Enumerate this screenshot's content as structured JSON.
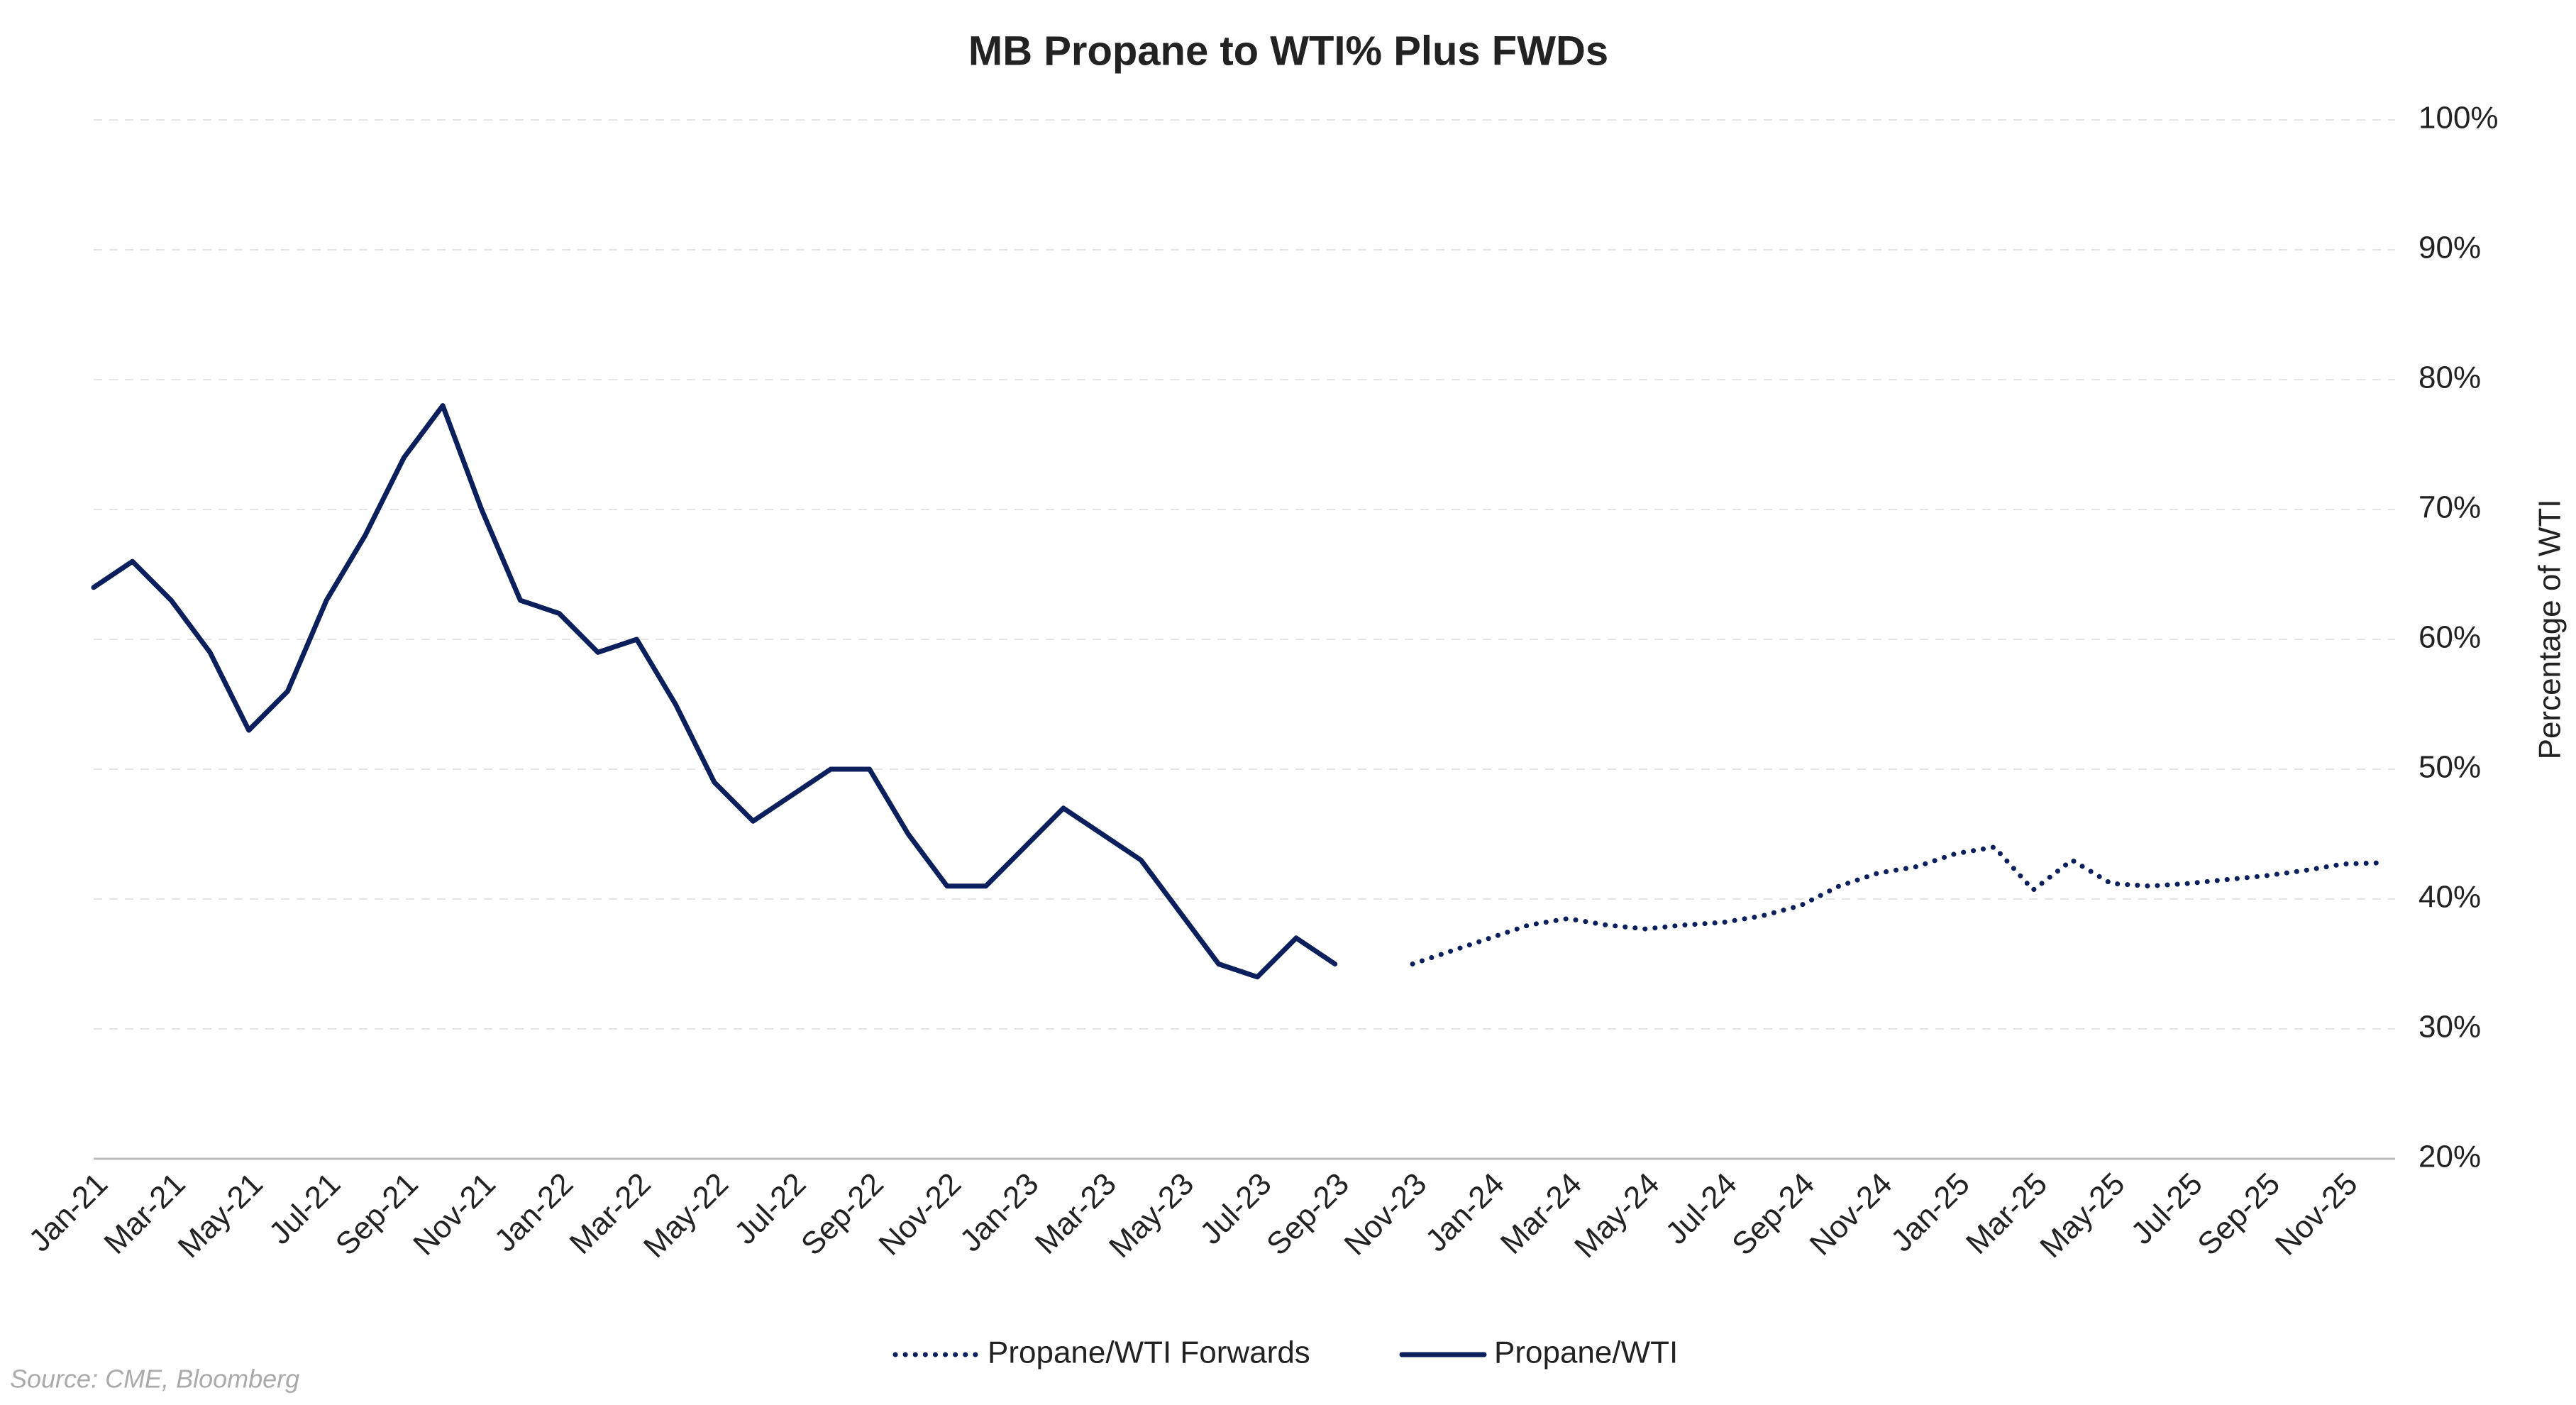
{
  "chart_data": {
    "type": "line",
    "title": "MB Propane to WTI% Plus FWDs",
    "y_axis_label": "Percentage of WTI",
    "source": "Source: CME, Bloomberg",
    "categories": [
      "Jan-21",
      null,
      "Mar-21",
      null,
      "May-21",
      null,
      "Jul-21",
      null,
      "Sep-21",
      null,
      "Nov-21",
      null,
      "Jan-22",
      null,
      "Mar-22",
      null,
      "May-22",
      null,
      "Jul-22",
      null,
      "Sep-22",
      null,
      "Nov-22",
      null,
      "Jan-23",
      null,
      "Mar-23",
      null,
      "May-23",
      null,
      "Jul-23",
      null,
      "Sep-23",
      null,
      "Nov-23",
      null,
      "Jan-24",
      null,
      "Mar-24",
      null,
      "May-24",
      null,
      "Jul-24",
      null,
      "Sep-24",
      null,
      "Nov-24",
      null,
      "Jan-25",
      null,
      "Mar-25",
      null,
      "May-25",
      null,
      "Jul-25",
      null,
      "Sep-25",
      null,
      "Nov-25",
      null
    ],
    "series": [
      {
        "name": "Propane/WTI Forwards",
        "color": "#0b1f5c",
        "style": "dotted",
        "values": [
          null,
          null,
          null,
          null,
          null,
          null,
          null,
          null,
          null,
          null,
          null,
          null,
          null,
          null,
          null,
          null,
          null,
          null,
          null,
          null,
          null,
          null,
          null,
          null,
          null,
          null,
          null,
          null,
          null,
          null,
          null,
          null,
          null,
          null,
          35,
          36,
          37,
          38,
          38.5,
          38,
          37.7,
          38,
          38.2,
          38.7,
          39.5,
          41,
          42,
          42.5,
          43.5,
          44,
          40.7,
          43,
          41.2,
          41,
          41.2,
          41.5,
          41.8,
          42.2,
          42.7,
          42.8
        ]
      },
      {
        "name": "Propane/WTI",
        "color": "#0b1f5c",
        "style": "solid",
        "values": [
          64,
          66,
          63,
          59,
          53,
          56,
          63,
          68,
          74,
          78,
          70,
          63,
          62,
          59,
          60,
          55,
          49,
          46,
          48,
          50,
          50,
          45,
          41,
          41,
          44,
          47,
          45,
          43,
          39,
          35,
          34,
          37,
          35,
          null,
          null,
          null,
          null,
          null,
          null,
          null,
          null,
          null,
          null,
          null,
          null,
          null,
          null,
          null,
          null,
          null,
          null,
          null,
          null,
          null,
          null,
          null,
          null,
          null,
          null,
          null
        ]
      }
    ],
    "ylim": [
      20,
      100
    ],
    "yticks": [
      {
        "value": 20,
        "label": "20%"
      },
      {
        "value": 30,
        "label": "30%"
      },
      {
        "value": 40,
        "label": "40%"
      },
      {
        "value": 50,
        "label": "50%"
      },
      {
        "value": 60,
        "label": "60%"
      },
      {
        "value": 70,
        "label": "70%"
      },
      {
        "value": 80,
        "label": "80%"
      },
      {
        "value": 90,
        "label": "90%"
      },
      {
        "value": 100,
        "label": "100%"
      }
    ],
    "grid": true,
    "legend": "bottom"
  }
}
